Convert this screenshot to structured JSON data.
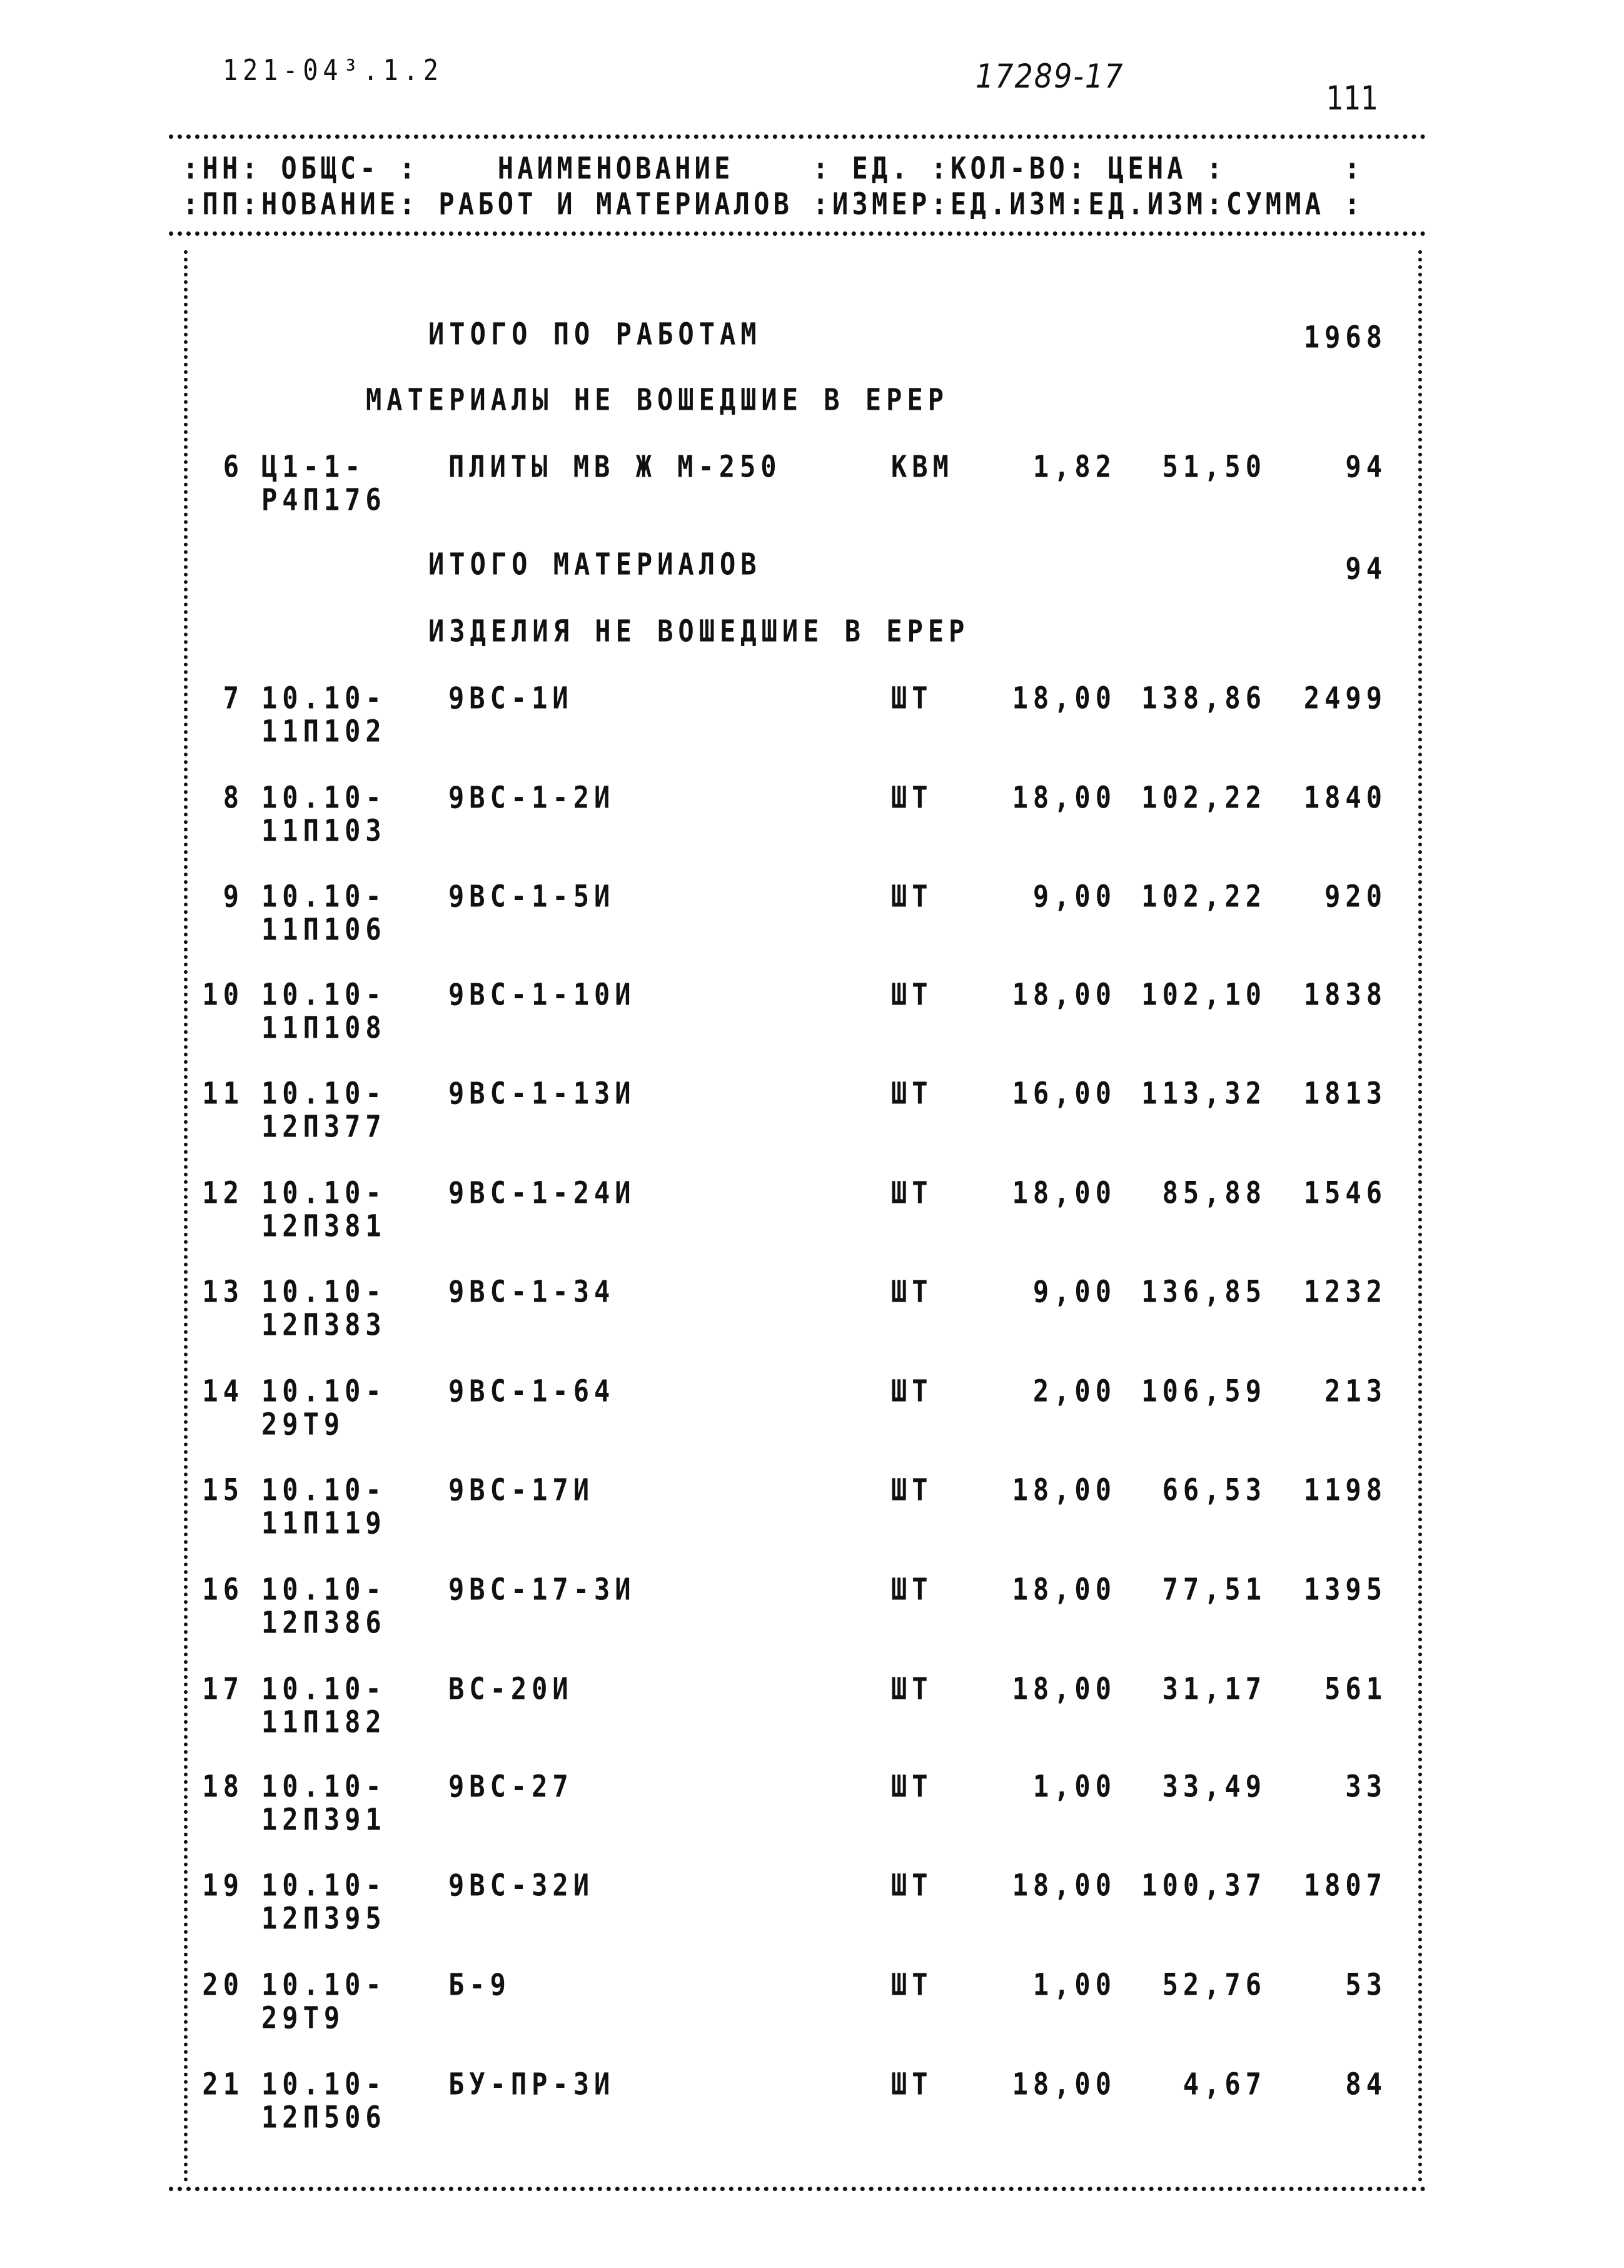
{
  "header": {
    "doc_code": "121-04³.1.2",
    "handwritten_number": "17289-17",
    "page_number": "111"
  },
  "table_header": {
    "line1": ":НН: ОБЩС- :    НАИМЕНОВАНИЕ    : ЕД. :КОЛ-ВО: ЦЕНА :      :",
    "line2": ":ПП:НОВАНИЕ: РАБОТ И МАТЕРИАЛОВ :ИЗМЕР:ЕД.ИЗМ:ЕД.ИЗМ:СУММА :"
  },
  "sections": {
    "works_total_label": "ИТОГО ПО РАБОТАМ",
    "works_total_sum": "1968",
    "materials_heading": "МАТЕРИАЛЫ НЕ ВОШЕДШИЕ В ЕРЕР",
    "materials_total_label": "ИТОГО МАТЕРИАЛОВ",
    "materials_total_sum": "94",
    "products_heading": "ИЗДЕЛИЯ НЕ ВОШЕДШИЕ В ЕРЕР"
  },
  "rows": [
    {
      "n": "6",
      "code1": "Ц1-1-",
      "code2": "Р4П176",
      "name": "ПЛИТЫ МВ Ж М-250",
      "unit": "КВМ",
      "qty": "1,82",
      "price": "51,50",
      "sum": "94"
    },
    {
      "n": "7",
      "code1": "10.10-",
      "code2": "11П102",
      "name": "9ВС-1И",
      "unit": "ШТ",
      "qty": "18,00",
      "price": "138,86",
      "sum": "2499"
    },
    {
      "n": "8",
      "code1": "10.10-",
      "code2": "11П103",
      "name": "9ВС-1-2И",
      "unit": "ШТ",
      "qty": "18,00",
      "price": "102,22",
      "sum": "1840"
    },
    {
      "n": "9",
      "code1": "10.10-",
      "code2": "11П106",
      "name": "9ВС-1-5И",
      "unit": "ШТ",
      "qty": "9,00",
      "price": "102,22",
      "sum": "920"
    },
    {
      "n": "10",
      "code1": "10.10-",
      "code2": "11П108",
      "name": "9ВС-1-10И",
      "unit": "ШТ",
      "qty": "18,00",
      "price": "102,10",
      "sum": "1838"
    },
    {
      "n": "11",
      "code1": "10.10-",
      "code2": "12П377",
      "name": "9ВС-1-13И",
      "unit": "ШТ",
      "qty": "16,00",
      "price": "113,32",
      "sum": "1813"
    },
    {
      "n": "12",
      "code1": "10.10-",
      "code2": "12П381",
      "name": "9ВС-1-24И",
      "unit": "ШТ",
      "qty": "18,00",
      "price": "85,88",
      "sum": "1546"
    },
    {
      "n": "13",
      "code1": "10.10-",
      "code2": "12П383",
      "name": "9ВС-1-34",
      "unit": "ШТ",
      "qty": "9,00",
      "price": "136,85",
      "sum": "1232"
    },
    {
      "n": "14",
      "code1": "10.10-",
      "code2": "29Т9",
      "name": "9ВС-1-64",
      "unit": "ШТ",
      "qty": "2,00",
      "price": "106,59",
      "sum": "213"
    },
    {
      "n": "15",
      "code1": "10.10-",
      "code2": "11П119",
      "name": "9ВС-17И",
      "unit": "ШТ",
      "qty": "18,00",
      "price": "66,53",
      "sum": "1198"
    },
    {
      "n": "16",
      "code1": "10.10-",
      "code2": "12П386",
      "name": "9ВС-17-3И",
      "unit": "ШТ",
      "qty": "18,00",
      "price": "77,51",
      "sum": "1395"
    },
    {
      "n": "17",
      "code1": "10.10-",
      "code2": "11П182",
      "name": "ВС-20И",
      "unit": "ШТ",
      "qty": "18,00",
      "price": "31,17",
      "sum": "561"
    },
    {
      "n": "18",
      "code1": "10.10-",
      "code2": "12П391",
      "name": "9ВС-27",
      "unit": "ШТ",
      "qty": "1,00",
      "price": "33,49",
      "sum": "33"
    },
    {
      "n": "19",
      "code1": "10.10-",
      "code2": "12П395",
      "name": "9ВС-32И",
      "unit": "ШТ",
      "qty": "18,00",
      "price": "100,37",
      "sum": "1807"
    },
    {
      "n": "20",
      "code1": "10.10-",
      "code2": "29Т9",
      "name": "Б-9",
      "unit": "ШТ",
      "qty": "1,00",
      "price": "52,76",
      "sum": "53"
    },
    {
      "n": "21",
      "code1": "10.10-",
      "code2": "12П506",
      "name": "БУ-ПР-3И",
      "unit": "ШТ",
      "qty": "18,00",
      "price": "4,67",
      "sum": "84"
    }
  ]
}
